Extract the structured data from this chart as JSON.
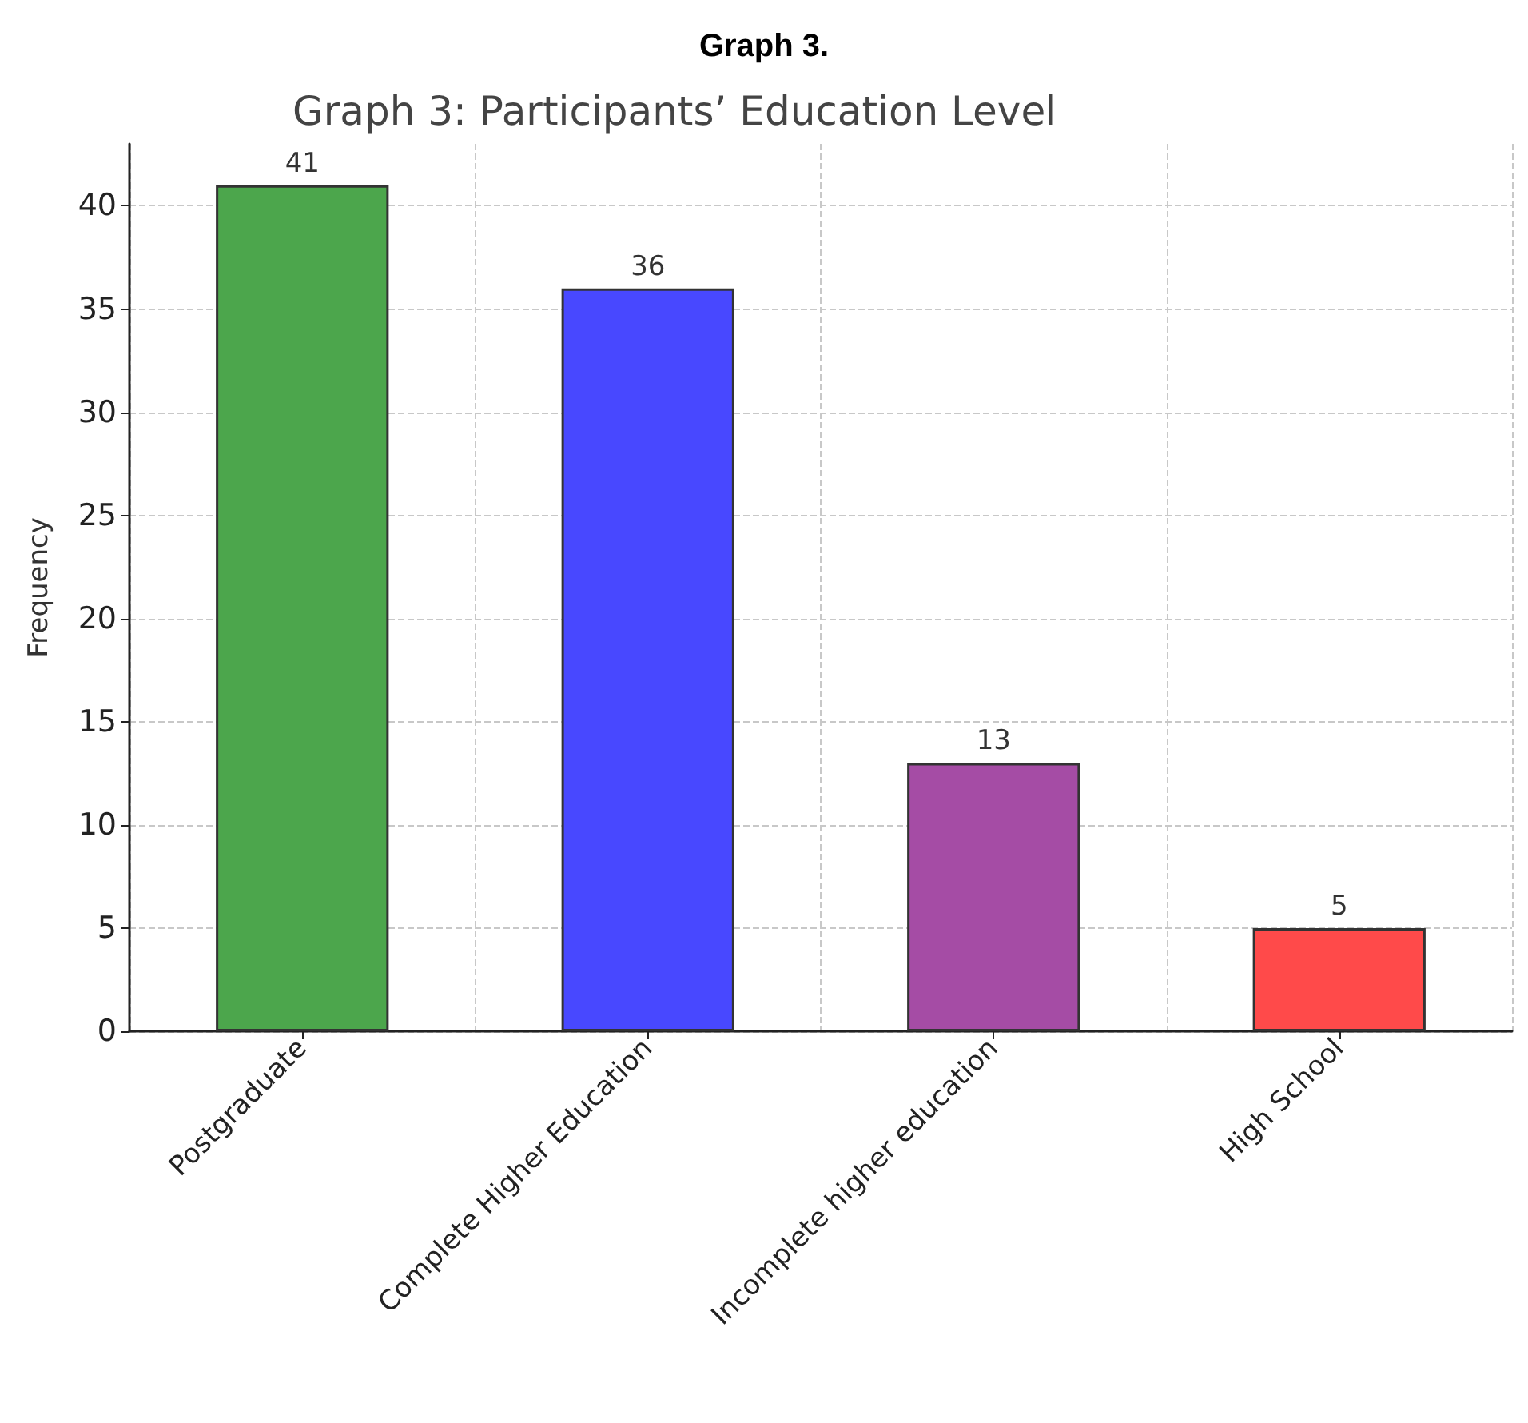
{
  "chart_data": {
    "type": "bar",
    "title": "Graph 3.",
    "subtitle": "Graph 3: Participants’ Education Level",
    "ylabel": "Frequency",
    "categories": [
      "Postgraduate",
      "Complete Higher Education",
      "Incomplete higher education",
      "High School"
    ],
    "values": [
      41,
      36,
      13,
      5
    ],
    "colors": [
      "#4ca64c",
      "#4848ff",
      "#a54ca5",
      "#ff4a4a"
    ],
    "ylim": [
      0,
      43
    ],
    "yticks": [
      0,
      5,
      10,
      15,
      20,
      25,
      30,
      35,
      40
    ],
    "grid": true,
    "data_labels": true
  }
}
